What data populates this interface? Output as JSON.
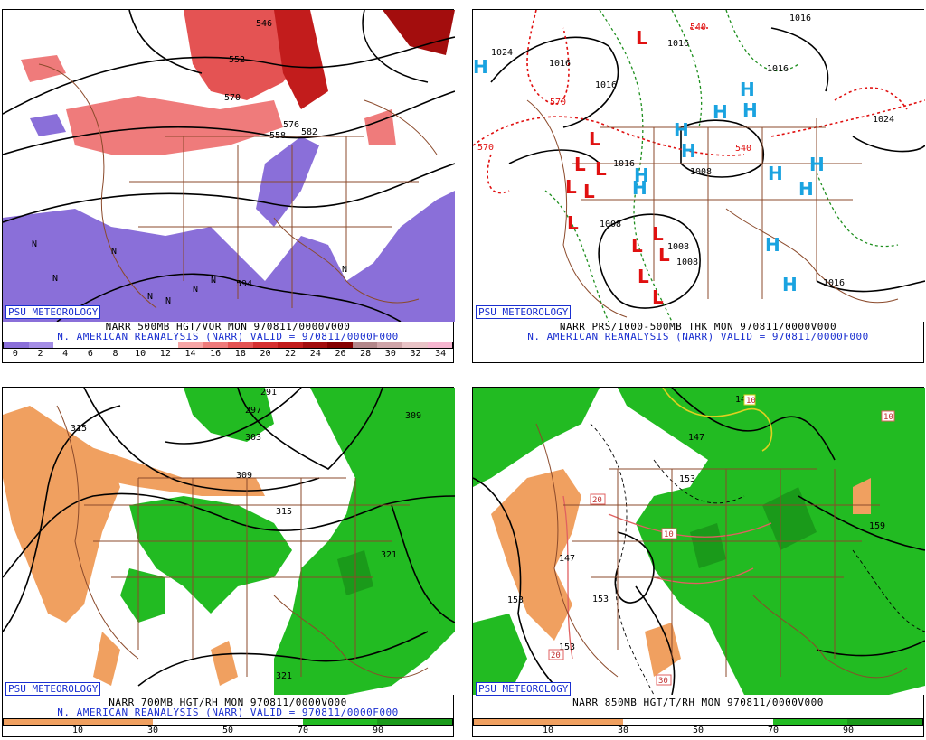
{
  "brand": "PSU METEOROLOGY",
  "panels": [
    {
      "id": "vor500",
      "line1": "NARR 500MB HGT/VOR MON 970811/0000V000",
      "line2": "N. AMERICAN REANALYSIS (NARR) VALID = 970811/0000F000",
      "colorbar": {
        "ticks": [
          "0",
          "2",
          "4",
          "6",
          "8",
          "10",
          "12",
          "14",
          "16",
          "18",
          "20",
          "22",
          "24",
          "26",
          "28",
          "30",
          "32",
          "34"
        ],
        "colors": [
          "#8a6fd9",
          "#a48ee6",
          "#ffffff",
          "#ffffff",
          "#ffffff",
          "#ffffff",
          "#ffffff",
          "#f7a6a6",
          "#ef7b7b",
          "#e45353",
          "#d63030",
          "#c21c1c",
          "#a30d0d",
          "#850000",
          "#b3878a",
          "#cfa4a8",
          "#e8c3c6",
          "#f6b6d0"
        ]
      },
      "labels": [
        "546",
        "552",
        "558",
        "570",
        "582",
        "594",
        "576",
        "N",
        "N",
        "N",
        "N",
        "N",
        "N",
        "N",
        "N"
      ],
      "colors": {
        "vort_pos": "#e45353",
        "vort_neg": "#8a6fd9",
        "map": "#8b4a2b"
      }
    },
    {
      "id": "prs1000",
      "line1": "NARR PRS/1000-500MB THK MON 970811/0000V000",
      "line2": "N. AMERICAN REANALYSIS (NARR) VALID = 970811/0000F000",
      "labels": [
        "1024",
        "1016",
        "1016",
        "1016",
        "1008",
        "1008",
        "1008",
        "1016",
        "1024",
        "1016",
        "1016",
        "1008",
        "540",
        "570",
        "570",
        "540",
        "1016"
      ],
      "highs": [
        "H",
        "H",
        "H",
        "H",
        "H",
        "H",
        "H",
        "H",
        "H",
        "H",
        "H",
        "H",
        "H"
      ],
      "lows": [
        "L",
        "L",
        "L",
        "L",
        "L",
        "L",
        "L",
        "L",
        "L",
        "L",
        "L",
        "L"
      ],
      "colors": {
        "high": "#1aa3e0",
        "low": "#e01010",
        "thk_cold": "#1f8f1f",
        "thk_warm": "#e01010"
      }
    },
    {
      "id": "rh700",
      "line1": "NARR 700MB HGT/RH MON 970811/0000V000",
      "line2": "N. AMERICAN REANALYSIS (NARR) VALID = 970811/0000F000",
      "colorbar": {
        "ticks": [
          "10",
          "30",
          "50",
          "70",
          "90"
        ],
        "colors": [
          "#f0a060",
          "#f0a060",
          "#ffffff",
          "#ffffff",
          "#22bb22",
          "#1a9a1a"
        ]
      },
      "labels": [
        "315",
        "291",
        "297",
        "303",
        "309",
        "309",
        "315",
        "321",
        "321"
      ],
      "colors": {
        "dry": "#f0a060",
        "moist": "#22bb22"
      }
    },
    {
      "id": "t850",
      "line1": "NARR 850MB HGT/T/RH MON 970811/0000V000",
      "line2": "",
      "colorbar": {
        "ticks": [
          "10",
          "30",
          "50",
          "70",
          "90"
        ],
        "colors": [
          "#f0a060",
          "#f0a060",
          "#ffffff",
          "#ffffff",
          "#22bb22",
          "#1a9a1a"
        ]
      },
      "labels": [
        "147",
        "141",
        "153",
        "147",
        "153",
        "153",
        "153",
        "159"
      ],
      "temp_labels": [
        "10",
        "10",
        "20",
        "20",
        "30",
        "10"
      ],
      "colors": {
        "dry": "#f0a060",
        "moist": "#22bb22",
        "temp": "#e06060"
      }
    }
  ]
}
